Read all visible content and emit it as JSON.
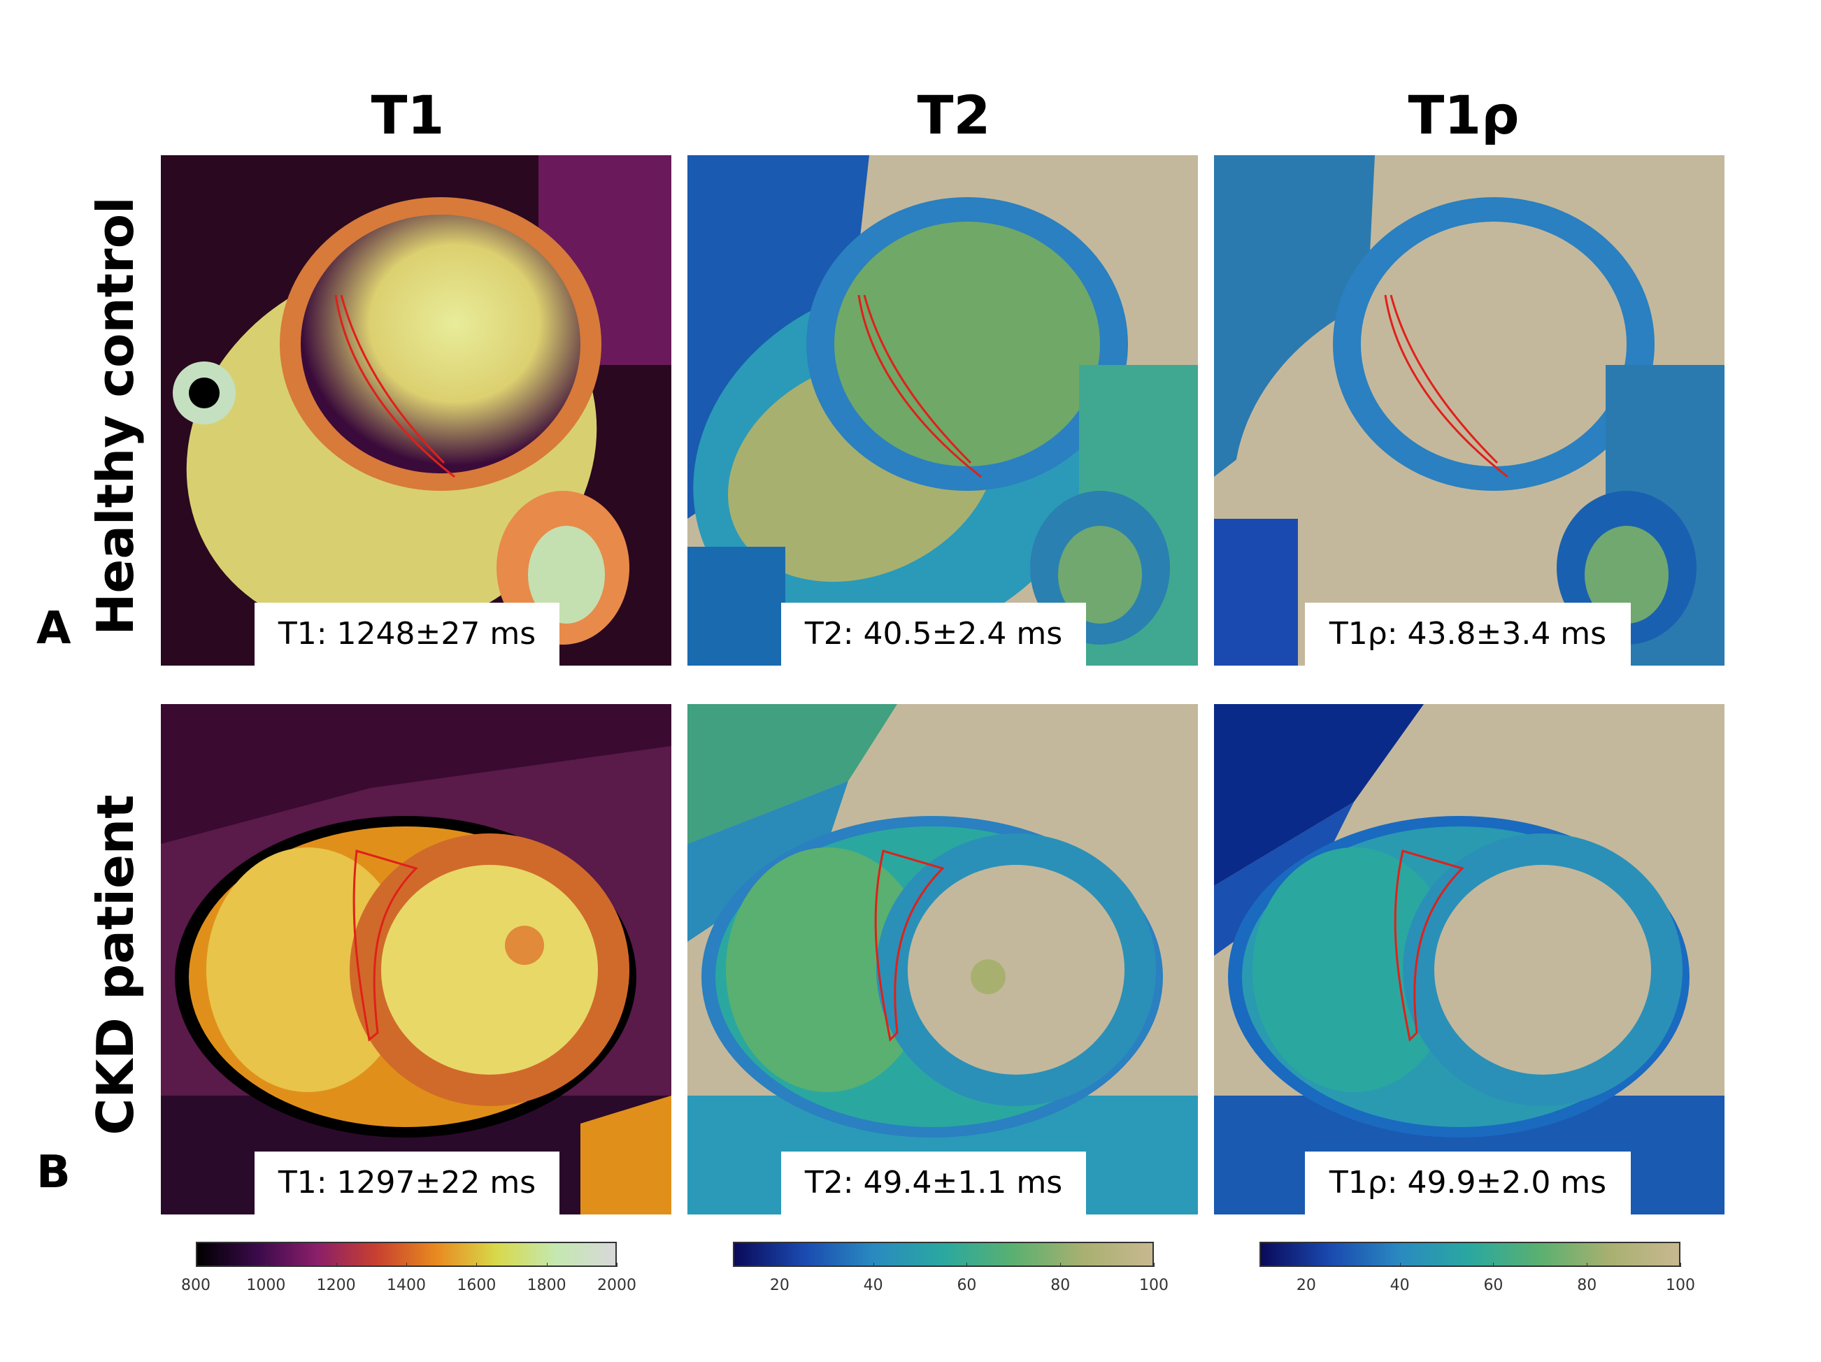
{
  "columns": {
    "t1": "T1",
    "t2": "T2",
    "t1rho": "T1ρ"
  },
  "rows": {
    "a": {
      "letter": "A",
      "label": "Healthy control"
    },
    "b": {
      "letter": "B",
      "label": "CKD patient"
    }
  },
  "measurements": {
    "a_t1": "T1: 1248±27 ms",
    "a_t2": "T2: 40.5±2.4 ms",
    "a_t1rho": "T1ρ: 43.8±3.4 ms",
    "b_t1": "T1: 1297±22 ms",
    "b_t2": "T2: 49.4±1.1 ms",
    "b_t1rho": "T1ρ: 49.9±2.0 ms"
  },
  "colorbars": {
    "t1": {
      "ticks": [
        "800",
        "1000",
        "1200",
        "1400",
        "1600",
        "1800",
        "2000"
      ],
      "min": 800,
      "max": 2000,
      "colors": [
        "#000000",
        "#3a0a4a",
        "#8a1f6a",
        "#c8402f",
        "#e88a20",
        "#d8d84a",
        "#c4e8b0",
        "#d8d8d8"
      ]
    },
    "t2": {
      "ticks": [
        "20",
        "40",
        "60",
        "80",
        "100"
      ],
      "min": 10,
      "max": 100,
      "colors": [
        "#0a0a5a",
        "#1a4ab0",
        "#2a8ac0",
        "#2aa8a0",
        "#5ab070",
        "#a8b070",
        "#c8b890"
      ]
    },
    "t1rho": {
      "ticks": [
        "20",
        "40",
        "60",
        "80",
        "100"
      ],
      "min": 10,
      "max": 100,
      "colors": [
        "#0a0a5a",
        "#1a4ab0",
        "#2a8ac0",
        "#2aa8a0",
        "#5ab070",
        "#a8b070",
        "#c8b890"
      ]
    }
  }
}
